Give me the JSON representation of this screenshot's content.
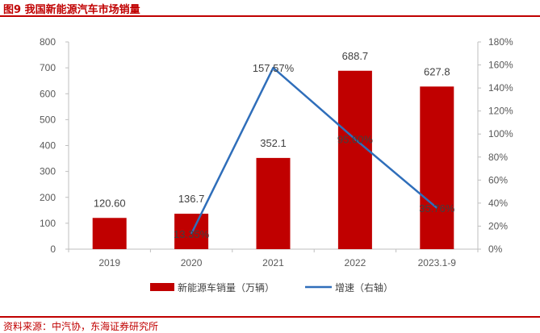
{
  "header": {
    "title": "图9  我国新能源汽车市场销量"
  },
  "footer": {
    "source": "资料来源：中汽协，东海证券研究所"
  },
  "colors": {
    "bar": "#C00000",
    "line": "#2F6EBA",
    "axis": "#BFBFBF",
    "text": "#595959",
    "accent": "#C00000"
  },
  "chart_data": {
    "type": "bar",
    "categories": [
      "2019",
      "2020",
      "2021",
      "2022",
      "2023.1-9"
    ],
    "series": [
      {
        "name": "新能源车销量（万辆）",
        "type": "bar",
        "axis": "left",
        "values": [
          120.6,
          136.7,
          352.1,
          688.7,
          627.8
        ],
        "labels": [
          "120.60",
          "136.7",
          "352.1",
          "688.7",
          "627.8"
        ]
      },
      {
        "name": "增速（右轴）",
        "type": "line",
        "axis": "right",
        "values": [
          null,
          13.35,
          157.57,
          95.6,
          35.76
        ],
        "labels": [
          "",
          "13.35%",
          "157.57%",
          "95.60%",
          "35.76%"
        ]
      }
    ],
    "y_left": {
      "min": 0,
      "max": 800,
      "step": 100,
      "ticks": [
        "0",
        "100",
        "200",
        "300",
        "400",
        "500",
        "600",
        "700",
        "800"
      ]
    },
    "y_right": {
      "min": 0,
      "max": 180,
      "step": 20,
      "ticks": [
        "0%",
        "20%",
        "40%",
        "60%",
        "80%",
        "100%",
        "120%",
        "140%",
        "160%",
        "180%"
      ]
    },
    "legend": {
      "position": "bottom"
    },
    "grid": false
  }
}
